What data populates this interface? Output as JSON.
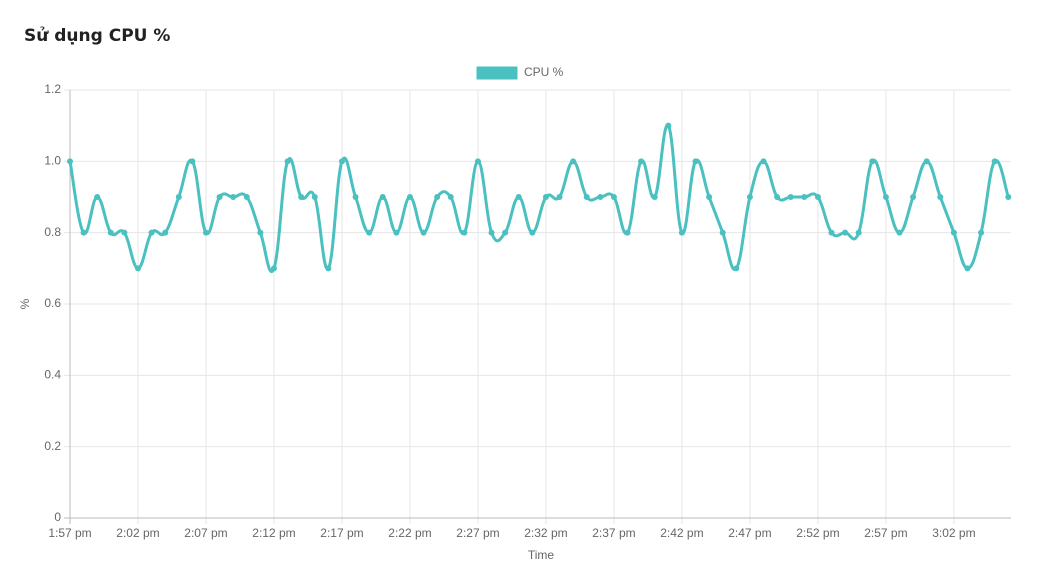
{
  "title": "Sử dụng CPU %",
  "chart_data": {
    "type": "line",
    "x_label": "Time",
    "y_label": "%",
    "categories": [
      "1:57 pm",
      null,
      null,
      null,
      null,
      "2:02 pm",
      null,
      null,
      null,
      null,
      "2:07 pm",
      null,
      null,
      null,
      null,
      "2:12 pm",
      null,
      null,
      null,
      null,
      "2:17 pm",
      null,
      null,
      null,
      null,
      "2:22 pm",
      null,
      null,
      null,
      null,
      "2:27 pm",
      null,
      null,
      null,
      null,
      "2:32 pm",
      null,
      null,
      null,
      null,
      "2:37 pm",
      null,
      null,
      null,
      null,
      "2:42 pm",
      null,
      null,
      null,
      null,
      "2:47 pm",
      null,
      null,
      null,
      null,
      "2:52 pm",
      null,
      null,
      null,
      null,
      "2:57 pm",
      null,
      null,
      null,
      null,
      "3:02 pm",
      null,
      null,
      null,
      null
    ],
    "series": [
      {
        "name": "CPU %",
        "color": "#4bc0c0",
        "values": [
          1.0,
          0.8,
          0.9,
          0.8,
          0.8,
          0.7,
          0.8,
          0.8,
          0.9,
          1.0,
          0.8,
          0.9,
          0.9,
          0.9,
          0.8,
          0.7,
          1.0,
          0.9,
          0.9,
          0.7,
          1.0,
          0.9,
          0.8,
          0.9,
          0.8,
          0.9,
          0.8,
          0.9,
          0.9,
          0.8,
          1.0,
          0.8,
          0.8,
          0.9,
          0.8,
          0.9,
          0.9,
          1.0,
          0.9,
          0.9,
          0.9,
          0.8,
          1.0,
          0.9,
          1.1,
          0.8,
          1.0,
          0.9,
          0.8,
          0.7,
          0.9,
          1.0,
          0.9,
          0.9,
          0.9,
          0.9,
          0.8,
          0.8,
          0.8,
          1.0,
          0.9,
          0.8,
          0.9,
          1.0,
          0.9,
          0.8,
          0.7,
          0.8,
          1.0,
          0.9
        ]
      }
    ],
    "ylim": [
      0,
      1.2
    ],
    "yticks": [
      0,
      0.2,
      0.4,
      0.6,
      0.8,
      {
        "value": 1,
        "label": "1.0"
      },
      1.2
    ],
    "grid": true,
    "legend": "top"
  }
}
